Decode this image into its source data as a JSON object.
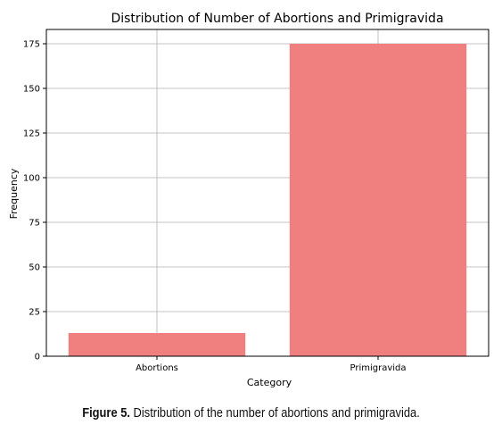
{
  "chart_data": {
    "type": "bar",
    "title": "Distribution of Number of Abortions and Primigravida",
    "xlabel": "Category",
    "ylabel": "Frequency",
    "categories": [
      "Abortions",
      "Primigravida"
    ],
    "values": [
      13,
      175
    ],
    "ylim": [
      0,
      183
    ],
    "yticks": [
      "0",
      "25",
      "50",
      "75",
      "100",
      "125",
      "150",
      "175"
    ],
    "grid": true,
    "bar_color": "#f08080"
  },
  "caption": {
    "label": "Figure 5.",
    "text": "Distribution of the number of abortions and primigravida."
  }
}
